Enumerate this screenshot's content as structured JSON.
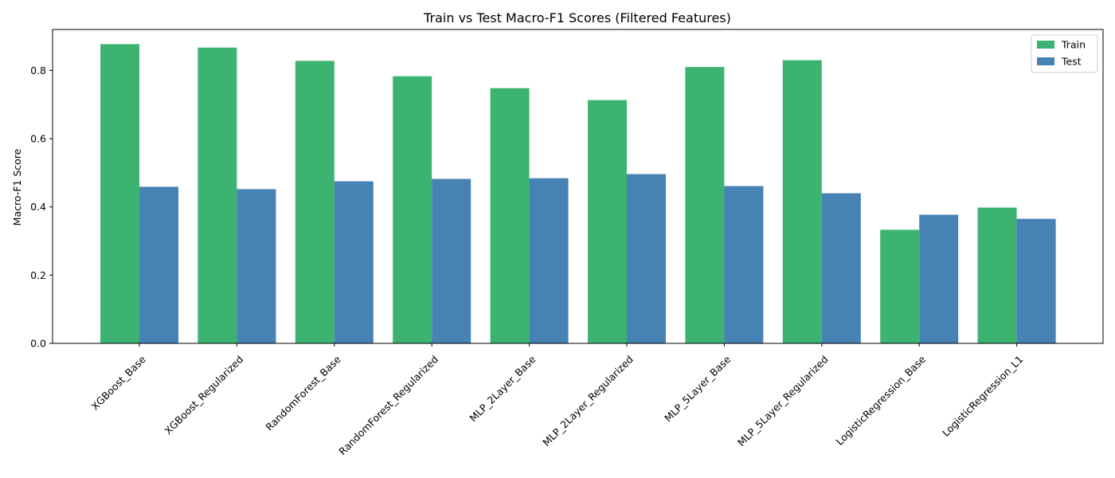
{
  "chart_data": {
    "type": "bar",
    "title": "Train vs Test Macro-F1 Scores (Filtered Features)",
    "xlabel": "",
    "ylabel": "Macro-F1 Score",
    "categories": [
      "XGBoost_Base",
      "XGBoost_Regularized",
      "RandomForest_Base",
      "RandomForest_Regularized",
      "MLP_2Layer_Base",
      "MLP_2Layer_Regularized",
      "MLP_5Layer_Base",
      "MLP_5Layer_Regularized",
      "LogisticRegression_Base",
      "LogisticRegression_L1"
    ],
    "series": [
      {
        "name": "Train",
        "color": "#3cb371",
        "values": [
          0.877,
          0.867,
          0.828,
          0.783,
          0.748,
          0.713,
          0.81,
          0.83,
          0.333,
          0.398
        ]
      },
      {
        "name": "Test",
        "color": "#4682b4",
        "values": [
          0.459,
          0.452,
          0.475,
          0.482,
          0.484,
          0.496,
          0.461,
          0.44,
          0.377,
          0.365
        ]
      }
    ],
    "ylim": [
      0,
      0.92
    ],
    "yticks": [
      "0.0",
      "0.2",
      "0.4",
      "0.6",
      "0.8"
    ],
    "grid": false,
    "legend_position": "top-right"
  }
}
